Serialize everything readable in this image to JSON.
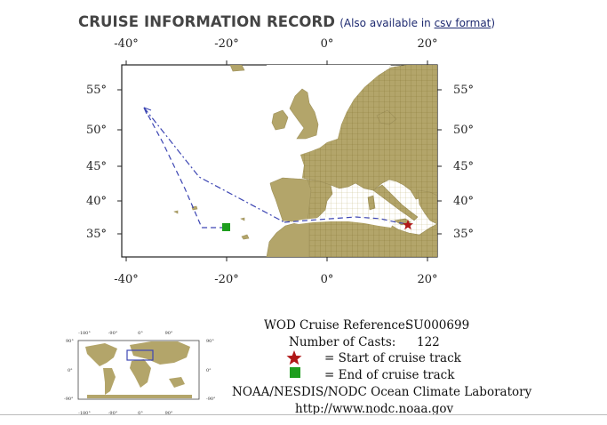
{
  "header": {
    "title": "CRUISE INFORMATION RECORD",
    "aside_prefix": "(Also available in ",
    "aside_link": "csv format",
    "aside_suffix": ")"
  },
  "map": {
    "lon_labels": [
      "-40°",
      "-20°",
      "0°",
      "20°"
    ],
    "lat_labels": [
      "55°",
      "50°",
      "45°",
      "40°",
      "35°"
    ],
    "colors": {
      "land": "#b3a56a",
      "ocean": "#ffffff",
      "track": "#3d46b3",
      "start": "#b01818",
      "end": "#1f9e1f"
    }
  },
  "legend": {
    "reference_label": "WOD Cruise Reference:",
    "reference_value": "SU000699",
    "casts_label": "Number of Casts:",
    "casts_value": "122",
    "start_label": "= Start of cruise track",
    "end_label": "= End of cruise track",
    "org": "NOAA/NESDIS/NODC Ocean Climate Laboratory",
    "url": "http://www.nodc.noaa.gov",
    "start_icon": "star-icon",
    "end_icon": "square-icon"
  },
  "minimap": {
    "top_labels": [
      "-180°",
      "-90°",
      "0°",
      "90°"
    ],
    "bottom_labels": [
      "-180°",
      "-90°",
      "0°",
      "90°"
    ],
    "left_labels": [
      "90°",
      "0°",
      "-90°"
    ],
    "right_labels": [
      "90°",
      "0°",
      "-90°"
    ]
  }
}
